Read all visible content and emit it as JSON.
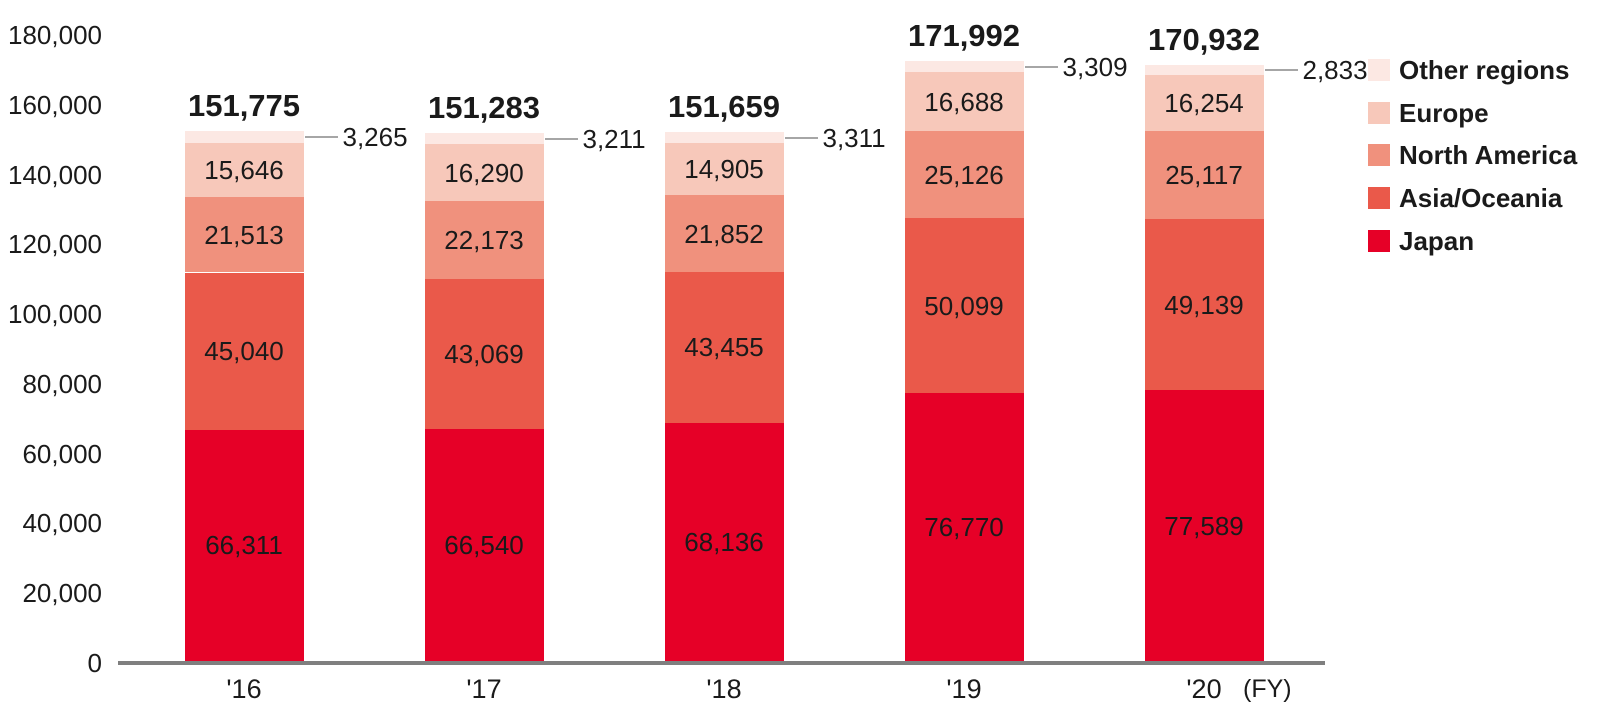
{
  "chart_data": {
    "type": "bar",
    "stacked": true,
    "title": "",
    "categories": [
      "'16",
      "'17",
      "'18",
      "'19",
      "'20"
    ],
    "x_axis_suffix": "(FY)",
    "ylim": [
      0,
      180000
    ],
    "y_tick_interval": 20000,
    "grid": false,
    "legend_position": "right",
    "legend_order_top_to_bottom": [
      "Other regions",
      "Europe",
      "North America",
      "Asia/Oceania",
      "Japan"
    ],
    "series": [
      {
        "name": "Japan",
        "color": "#e60027",
        "label_placement": "inside",
        "values": [
          66311,
          66540,
          68136,
          76770,
          77589
        ]
      },
      {
        "name": "Asia/Oceania",
        "color": "#ea594a",
        "label_placement": "inside",
        "values": [
          45040,
          43069,
          43455,
          50099,
          49139
        ]
      },
      {
        "name": "North America",
        "color": "#f0917d",
        "label_placement": "inside",
        "values": [
          21513,
          22173,
          21852,
          25126,
          25117
        ]
      },
      {
        "name": "Europe",
        "color": "#f7c8ba",
        "label_placement": "inside",
        "values": [
          15646,
          16290,
          14905,
          16688,
          16254
        ]
      },
      {
        "name": "Other regions",
        "color": "#fce8e3",
        "label_placement": "callout",
        "values": [
          3265,
          3211,
          3311,
          3309,
          2833
        ]
      }
    ],
    "totals": [
      151775,
      151283,
      151659,
      171992,
      170932
    ],
    "colors": {
      "axis_line": "#7f7f7f",
      "callout_line": "#a6a6a6",
      "text": "#1a1a1a"
    }
  }
}
